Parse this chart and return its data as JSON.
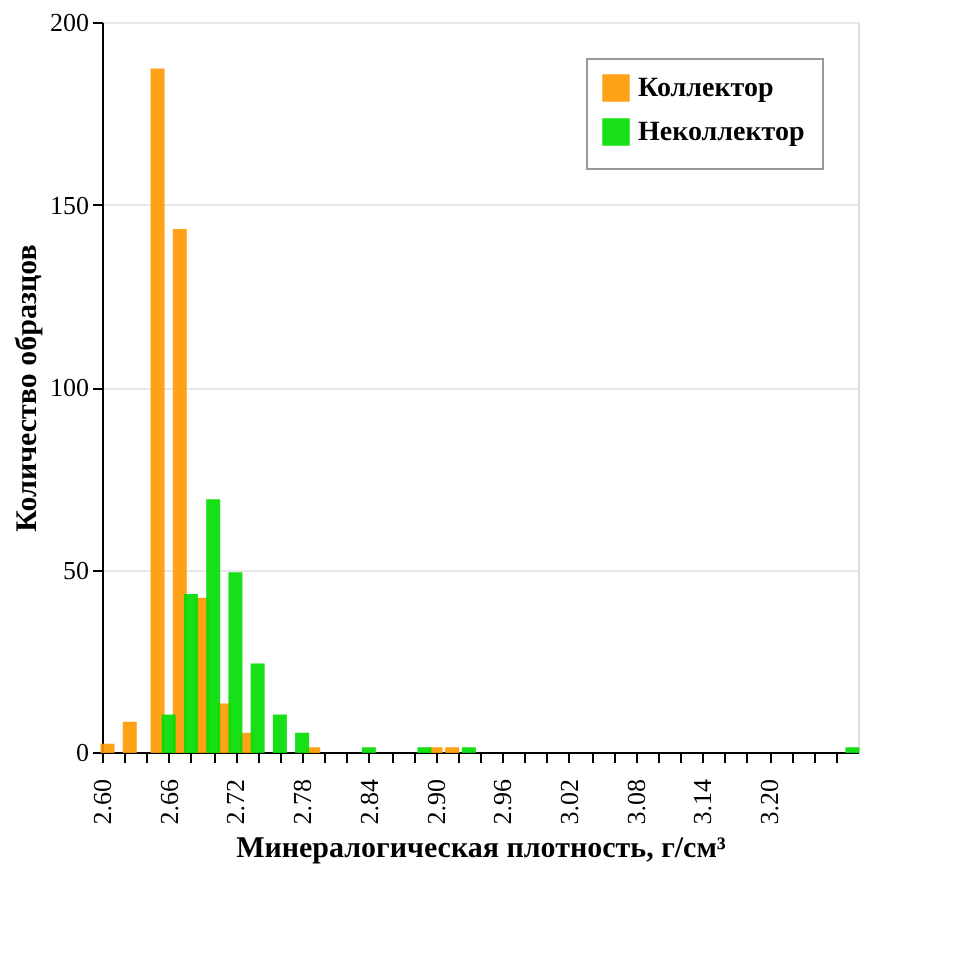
{
  "chart_data": {
    "type": "bar",
    "xlabel": "Минералогическая плотность, г/см³",
    "ylabel": "Количество образцов",
    "xlim": [
      2.6,
      3.28
    ],
    "xticks": [
      {
        "value": 2.6,
        "label": "2.60"
      },
      {
        "value": 2.62,
        "label": null
      },
      {
        "value": 2.64,
        "label": null
      },
      2.66,
      {
        "value": 2.68,
        "label": null
      },
      {
        "value": 2.7,
        "label": null
      },
      2.72,
      {
        "value": 2.74,
        "label": null
      },
      {
        "value": 2.76,
        "label": null
      },
      2.78,
      {
        "value": 2.8,
        "label": null
      },
      {
        "value": 2.82,
        "label": null
      },
      2.84,
      {
        "value": 2.86,
        "label": null
      },
      {
        "value": 2.88,
        "label": null
      },
      {
        "value": 2.9,
        "label": "2.90"
      },
      {
        "value": 2.92,
        "label": null
      },
      {
        "value": 2.94,
        "label": null
      },
      2.96,
      {
        "value": 2.98,
        "label": null
      },
      {
        "value": 3.0,
        "label": null
      },
      3.02,
      {
        "value": 3.04,
        "label": null
      },
      {
        "value": 3.06,
        "label": null
      },
      3.08,
      {
        "value": 3.1,
        "label": null
      },
      {
        "value": 3.12,
        "label": null
      },
      3.14,
      {
        "value": 3.16,
        "label": null
      },
      {
        "value": 3.18,
        "label": null
      },
      {
        "value": 3.2,
        "label": "3.20"
      },
      {
        "value": 3.22,
        "label": null
      },
      {
        "value": 3.24,
        "label": null
      },
      {
        "value": 3.26,
        "label": null
      }
    ],
    "ylim": [
      0,
      200
    ],
    "yticks": [
      0,
      50,
      100,
      150,
      200
    ],
    "grid": "y",
    "legend": "top right",
    "series": [
      {
        "name": "Коллектор",
        "color": "#ff9900",
        "x": [
          2.605,
          2.625,
          2.65,
          2.67,
          2.69,
          2.71,
          2.73,
          2.79,
          2.9,
          2.915
        ],
        "values": [
          2,
          8,
          187,
          143,
          42,
          13,
          5,
          1,
          1,
          1
        ]
      },
      {
        "name": "Неколлектор",
        "color": "#00dd00",
        "x": [
          2.66,
          2.68,
          2.7,
          2.72,
          2.74,
          2.76,
          2.78,
          2.84,
          2.89,
          2.93,
          3.275
        ],
        "values": [
          10,
          43,
          69,
          49,
          24,
          10,
          5,
          1,
          1,
          1,
          1
        ]
      }
    ]
  }
}
